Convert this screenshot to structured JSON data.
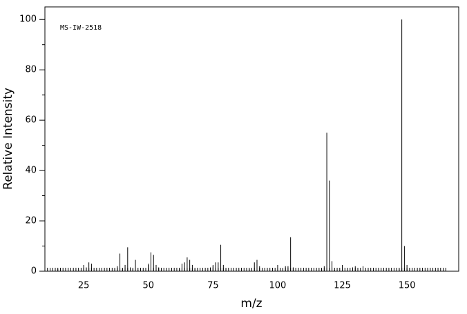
{
  "chart_data": {
    "type": "stick",
    "annotation": "MS-IW-2518",
    "x_label": "m/z",
    "y_label": "Relative Intensity",
    "xlim": [
      10,
      170
    ],
    "ylim": [
      0,
      105
    ],
    "xticks": [
      25,
      50,
      75,
      100,
      125,
      150
    ],
    "yticks": [
      0,
      20,
      40,
      60,
      80,
      100
    ],
    "color": "#000000",
    "x": [
      15,
      26,
      27,
      28,
      37,
      38,
      39,
      40,
      41,
      42,
      43,
      44,
      45,
      46,
      50,
      51,
      52,
      53,
      54,
      55,
      62,
      63,
      64,
      65,
      66,
      67,
      68,
      74,
      75,
      76,
      77,
      78,
      79,
      80,
      89,
      90,
      91,
      92,
      93,
      102,
      103,
      104,
      105,
      106,
      117,
      118,
      119,
      120,
      121,
      122,
      129,
      130,
      131,
      133,
      147,
      148,
      149,
      150
    ],
    "values": [
      1,
      1.5,
      3.5,
      3,
      1,
      2,
      7,
      1,
      2.5,
      9.5,
      1.5,
      1,
      4.5,
      0.5,
      3,
      7.5,
      6.5,
      2.5,
      1.5,
      1,
      1,
      3,
      3.5,
      5.5,
      4.5,
      2.5,
      1,
      1.5,
      2,
      3.5,
      3.5,
      10.5,
      2.5,
      1,
      1,
      1,
      3.5,
      4.5,
      2,
      1,
      2,
      2,
      13.5,
      1.5,
      1,
      2,
      55,
      36,
      4,
      0.5,
      1.5,
      2,
      1,
      2,
      1,
      100,
      10,
      1
    ]
  }
}
